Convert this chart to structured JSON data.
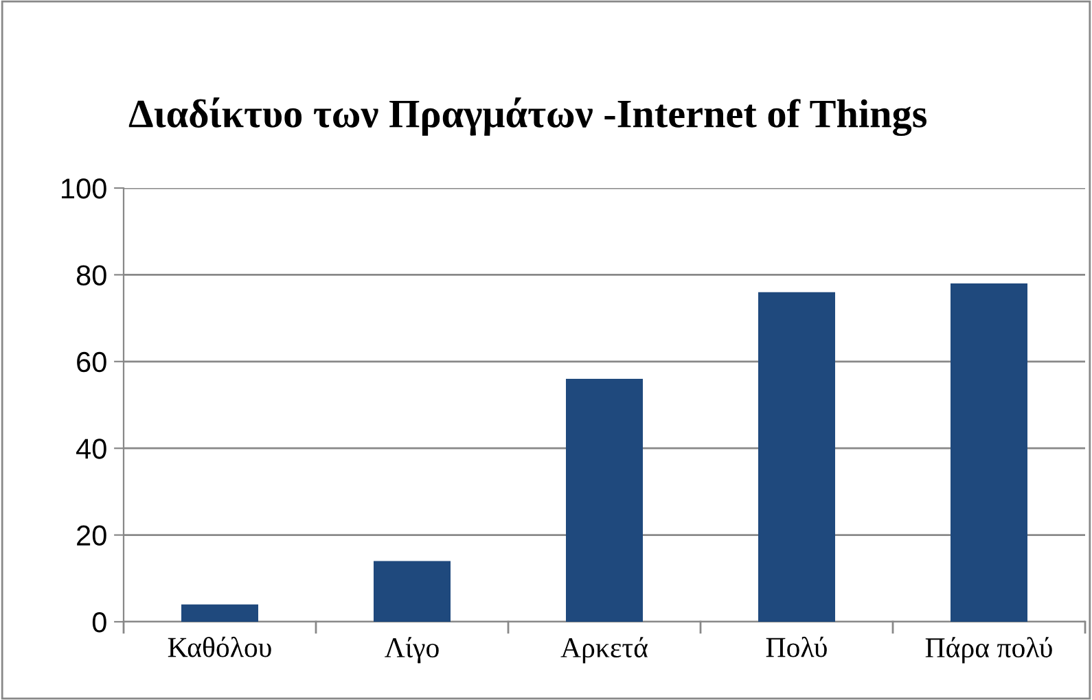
{
  "chart_data": {
    "type": "bar",
    "title": "Διαδίκτυο των Πραγμάτων -Internet of Things",
    "categories": [
      "Καθόλου",
      "Λίγο",
      "Αρκετά",
      "Πολύ",
      "Πάρα πολύ"
    ],
    "values": [
      4,
      14,
      56,
      76,
      78
    ],
    "color": "#1f497d",
    "ylim": [
      0,
      100
    ],
    "yticks": [
      0,
      20,
      40,
      60,
      80,
      100
    ],
    "grid": "y",
    "legend": false
  }
}
